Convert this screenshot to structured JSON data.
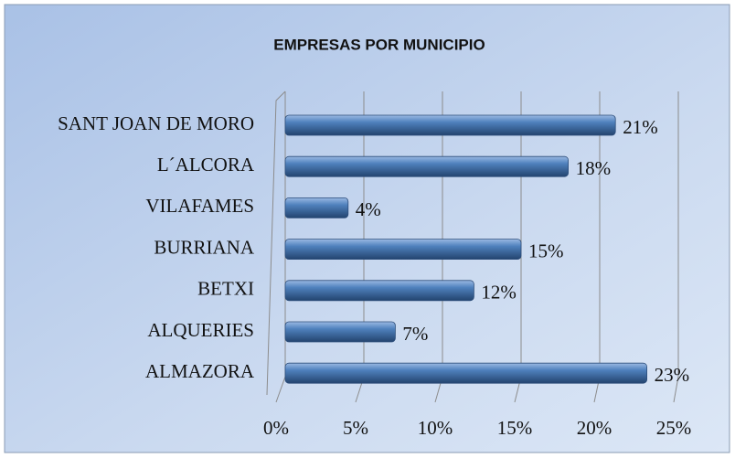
{
  "chart_data": {
    "type": "bar",
    "orientation": "horizontal",
    "title": "EMPRESAS POR MUNICIPIO",
    "categories": [
      "SANT JOAN DE MORO",
      "L´ALCORA",
      "VILAFAMES",
      "BURRIANA",
      "BETXI",
      "ALQUERIES",
      "ALMAZORA"
    ],
    "values": [
      21,
      18,
      4,
      15,
      12,
      7,
      23
    ],
    "value_labels": [
      "21%",
      "18%",
      "4%",
      "15%",
      "12%",
      "7%",
      "23%"
    ],
    "color": "#4f81bd",
    "xlim": [
      0,
      25
    ],
    "xticks": [
      {
        "value": 0,
        "label": "0%"
      },
      {
        "value": 5,
        "label": "5%"
      },
      {
        "value": 10,
        "label": "10%"
      },
      {
        "value": 15,
        "label": "15%"
      },
      {
        "value": 20,
        "label": "20%"
      },
      {
        "value": 25,
        "label": "25%"
      }
    ],
    "grid": true
  }
}
